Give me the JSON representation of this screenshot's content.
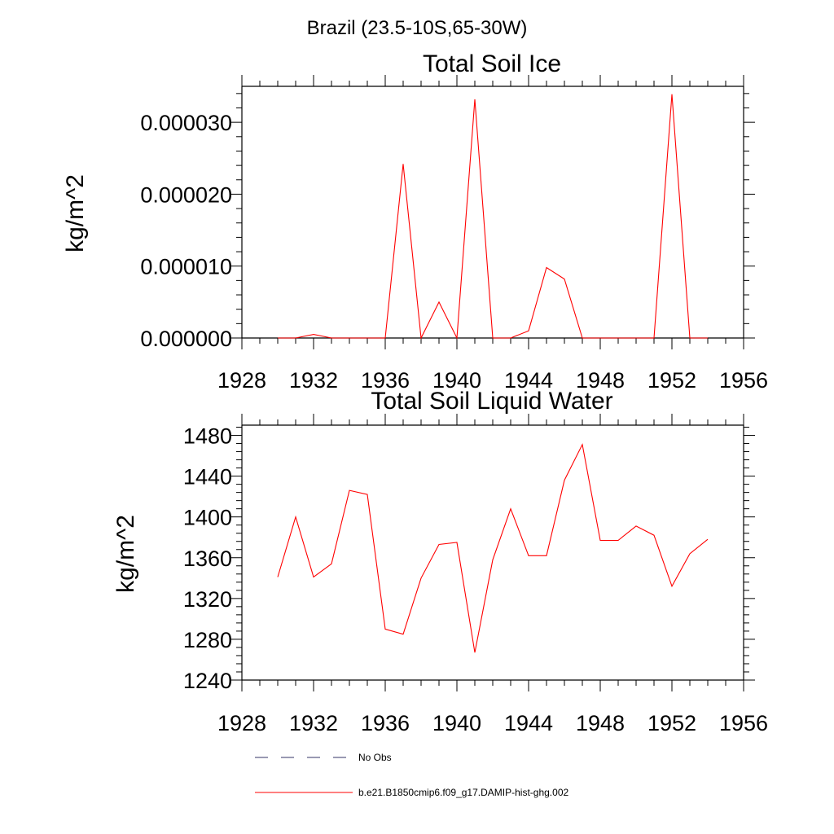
{
  "figure_title": "Brazil (23.5-10S,65-30W)",
  "legend": {
    "entries": [
      {
        "label": "No Obs",
        "style": "dashed",
        "color": "#333366"
      },
      {
        "label": "b.e21.B1850cmip6.f09_g17.DAMIP-hist-ghg.002",
        "style": "solid",
        "color": "#ff0000"
      }
    ]
  },
  "chart_data": [
    {
      "type": "line",
      "title": "Total Soil Ice",
      "xlabel": "",
      "ylabel": "kg/m^2",
      "xlim": [
        1928,
        1956
      ],
      "ylim": [
        0,
        3.5e-05
      ],
      "xticks": [
        1928,
        1932,
        1936,
        1940,
        1944,
        1948,
        1952,
        1956
      ],
      "yticks": [
        0,
        1e-05,
        2e-05,
        3e-05
      ],
      "ytick_labels": [
        "0.000000",
        "0.000010",
        "0.000020",
        "0.000030"
      ],
      "series": [
        {
          "color": "#ff0000",
          "x": [
            1930,
            1931,
            1932,
            1933,
            1934,
            1935,
            1936,
            1937,
            1938,
            1939,
            1940,
            1941,
            1942,
            1943,
            1944,
            1945,
            1946,
            1947,
            1948,
            1949,
            1950,
            1951,
            1952,
            1953,
            1954
          ],
          "values": [
            0,
            0,
            5e-07,
            0,
            0,
            0,
            0,
            2.42e-05,
            0,
            5e-06,
            0,
            3.32e-05,
            0,
            0,
            1e-06,
            9.8e-06,
            8.2e-06,
            0,
            0,
            0,
            0,
            0,
            3.39e-05,
            0,
            0
          ]
        }
      ]
    },
    {
      "type": "line",
      "title": "Total Soil Liquid Water",
      "xlabel": "",
      "ylabel": "kg/m^2",
      "xlim": [
        1928,
        1956
      ],
      "ylim": [
        1240,
        1490
      ],
      "xticks": [
        1928,
        1932,
        1936,
        1940,
        1944,
        1948,
        1952,
        1956
      ],
      "yticks": [
        1240,
        1280,
        1320,
        1360,
        1400,
        1440,
        1480
      ],
      "ytick_labels": [
        "1240",
        "1280",
        "1320",
        "1360",
        "1400",
        "1440",
        "1480"
      ],
      "series": [
        {
          "color": "#ff0000",
          "x": [
            1930,
            1931,
            1932,
            1933,
            1934,
            1935,
            1936,
            1937,
            1938,
            1939,
            1940,
            1941,
            1942,
            1943,
            1944,
            1945,
            1946,
            1947,
            1948,
            1949,
            1950,
            1951,
            1952,
            1953,
            1954
          ],
          "values": [
            1341,
            1400,
            1341,
            1354,
            1426,
            1422,
            1290,
            1285,
            1340,
            1373,
            1375,
            1267,
            1358,
            1408,
            1362,
            1362,
            1436,
            1471,
            1377,
            1377,
            1391,
            1382,
            1332,
            1364,
            1378
          ]
        }
      ]
    }
  ]
}
